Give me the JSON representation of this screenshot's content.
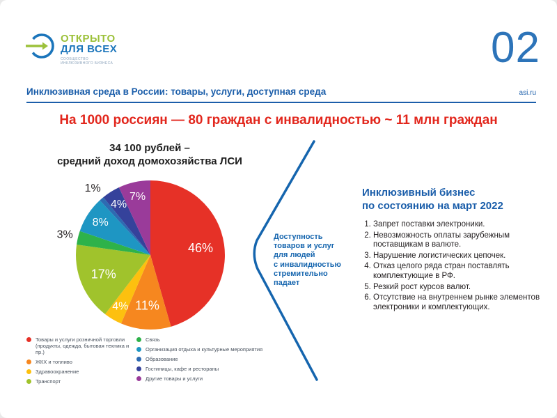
{
  "page": {
    "number": "02",
    "site": "asi.ru"
  },
  "logo": {
    "title_line1": "ОТКРЫТО",
    "title_line2": "ДЛЯ ВСЕХ",
    "subtitle_lines": [
      "СООБЩЕСТВО",
      "ИНКЛЮЗИВНОГО БИЗНЕСА"
    ]
  },
  "header": {
    "title": "Инклюзивная среда в России: товары, услуги, доступная среда"
  },
  "headline": "На 1000 россиян — 80 граждан с инвалидностью ~ 11 млн граждан",
  "chart_data": {
    "type": "pie",
    "title_line1": "34 100 рублей –",
    "title_line2": "средний доход домохозяйства ЛСИ",
    "unit": "%",
    "legend_split": 4,
    "slices": [
      {
        "label": "Товары и услуги розничной торговли (продукты, одежда, бытовая техника и пр.)",
        "value": 46,
        "color": "#e63127"
      },
      {
        "label": "ЖКХ и топливо",
        "value": 11,
        "color": "#f6871f"
      },
      {
        "label": "Здравоохранение",
        "value": 4,
        "color": "#fdc00f"
      },
      {
        "label": "Транспорт",
        "value": 17,
        "color": "#a0c32c"
      },
      {
        "label": "Связь",
        "value": 3,
        "color": "#2eb24a"
      },
      {
        "label": "Организация отдыха и культурные мероприятия",
        "value": 8,
        "color": "#1e96c3"
      },
      {
        "label": "Образование",
        "value": 1,
        "color": "#2d6bb2"
      },
      {
        "label": "Гостиницы, кафе и рестораны",
        "value": 4,
        "color": "#35429b"
      },
      {
        "label": "Другие товары и услуги",
        "value": 7,
        "color": "#9a3b9a"
      }
    ]
  },
  "callout": {
    "lines": [
      "Доступность",
      "товаров и услуг",
      "для людей",
      "с инвалидностью",
      "стремительно",
      "падает"
    ],
    "color": "#1565ae"
  },
  "panel": {
    "heading_line1": "Инклюзивный бизнес",
    "heading_line2": "по состоянию на март 2022",
    "items": [
      "Запрет поставки электроники.",
      "Невозможность оплаты зарубежным поставщикам в валюте.",
      "Нарушение логистических цепочек.",
      "Отказ целого ряда стран поставлять комплектующие в РФ.",
      "Резкий рост курсов валют.",
      "Отсутствие на внутреннем рынке элементов электроники и комплектующих."
    ]
  },
  "colors": {
    "accent_blue": "#1b5eaa",
    "light_blue": "#2d74b9",
    "red": "#e2261c",
    "logo_green": "#9cc13a",
    "text_dark": "#231f20"
  }
}
